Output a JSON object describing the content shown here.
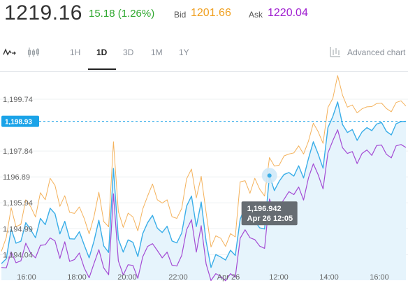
{
  "quote": {
    "price": "1219.16",
    "change": "15.18 (1.26%)",
    "bid_label": "Bid",
    "bid_value": "1201.66",
    "ask_label": "Ask",
    "ask_value": "1220.04"
  },
  "toolbar": {
    "line_icon": "line-chart-icon",
    "candle_icon": "candlestick-icon",
    "ranges": [
      "1H",
      "1D",
      "3D",
      "1M",
      "1Y"
    ],
    "active_range": "1D",
    "advanced_icon": "advanced-chart-icon",
    "advanced_label": "Advanced chart"
  },
  "colors": {
    "ask_series": "#f4b25c",
    "mid_series": "#3aaee8",
    "bid_series": "#a44bd4",
    "area_fill": "#e6f4fc",
    "current_line": "#1aa3e8"
  },
  "chart_data": {
    "type": "line",
    "y_ticks": [
      "1,199.74",
      "1,197.84",
      "1196.89",
      "1,195.94",
      "1,194.99",
      "1,194.04"
    ],
    "y_range": [
      1193.1,
      1200.74
    ],
    "x_ticks": [
      "16:00",
      "18:00",
      "20:00",
      "22:00",
      "Apr 26",
      "12:00",
      "14:00",
      "16:00"
    ],
    "current_value": "1,198.93",
    "current_numeric": 1198.93,
    "tooltip": {
      "value": "1,196.942",
      "time": "Apr 26 12:05"
    },
    "series": [
      {
        "color": "ask",
        "values": [
          1194.16,
          1194.67,
          1195.76,
          1195.06,
          1195.15,
          1196.05,
          1195.8,
          1195.42,
          1196.31,
          1196.05,
          1196.84,
          1196.58,
          1195.81,
          1196.2,
          1195.59,
          1195.55,
          1195.79,
          1195.36,
          1194.8,
          1195.43,
          1196.33,
          1195.25,
          1195.06,
          1198.18,
          1195.62,
          1195.04,
          1195.56,
          1195.42,
          1194.91,
          1195.71,
          1196.19,
          1196.63,
          1196.05,
          1195.93,
          1196.05,
          1195.43,
          1195.37,
          1195.73,
          1196.82,
          1197.18,
          1196.12,
          1196.91,
          1195.59,
          1194.32,
          1194.73,
          1194.64,
          1194.34,
          1194.81,
          1194.69,
          1196.71,
          1196.75,
          1196.29,
          1196.84,
          1196.44,
          1196.19,
          1197.6,
          1197.29,
          1197.32,
          1197.66,
          1197.73,
          1197.77,
          1198.03,
          1197.73,
          1198.2,
          1198.86,
          1198.55,
          1198.12,
          1199.44,
          1199.77,
          1200.61,
          1199.89,
          1199.45,
          1199.53,
          1199.24,
          1199.39,
          1199.46,
          1199.47,
          1199.58,
          1199.6,
          1199.4,
          1199.28,
          1199.62,
          1199.68,
          1199.49
        ]
      },
      {
        "color": "mid",
        "values": [
          1193.71,
          1193.89,
          1194.98,
          1194.46,
          1194.53,
          1195.21,
          1194.95,
          1194.66,
          1195.37,
          1195.14,
          1195.74,
          1195.54,
          1194.8,
          1195.26,
          1194.62,
          1194.61,
          1194.88,
          1194.39,
          1193.92,
          1194.53,
          1195.3,
          1194.36,
          1194.12,
          1197.2,
          1194.61,
          1194.13,
          1194.58,
          1194.49,
          1193.97,
          1194.81,
          1195.21,
          1195.48,
          1195.01,
          1194.85,
          1195.08,
          1194.54,
          1194.47,
          1194.83,
          1195.82,
          1196.19,
          1195.07,
          1195.97,
          1194.53,
          1193.57,
          1194.04,
          1193.95,
          1193.84,
          1194.2,
          1194.01,
          1195.34,
          1195.79,
          1195.4,
          1195.28,
          1195.02,
          1194.98,
          1196.94,
          1196.39,
          1196.73,
          1196.98,
          1197.05,
          1196.92,
          1197.3,
          1196.85,
          1197.56,
          1198.18,
          1197.73,
          1197.21,
          1198.7,
          1199.11,
          1199.64,
          1198.81,
          1198.52,
          1198.63,
          1198.23,
          1198.54,
          1198.7,
          1198.59,
          1198.83,
          1198.89,
          1198.56,
          1198.43,
          1198.84,
          1198.92,
          1198.93
        ]
      },
      {
        "color": "bid",
        "values": [
          1193.57,
          1193.55,
          1194.14,
          1193.74,
          1193.81,
          1194.46,
          1194.09,
          1193.92,
          1194.38,
          1194.4,
          1194.65,
          1194.54,
          1193.9,
          1194.51,
          1193.79,
          1193.86,
          1194.1,
          1193.55,
          1193.19,
          1193.71,
          1194.22,
          1193.55,
          1193.3,
          1196.27,
          1193.81,
          1193.29,
          1193.67,
          1193.64,
          1193.17,
          1193.96,
          1194.34,
          1194.44,
          1194.19,
          1193.92,
          1194.13,
          1193.65,
          1193.62,
          1194.01,
          1194.95,
          1195.32,
          1194.13,
          1195.1,
          1193.7,
          1193.09,
          1193.34,
          1193.24,
          1193.08,
          1193.34,
          1193.21,
          1194.64,
          1194.95,
          1194.66,
          1194.59,
          1194.35,
          1194.27,
          1196.08,
          1195.59,
          1195.8,
          1196.07,
          1196.35,
          1196.24,
          1196.52,
          1196.04,
          1196.85,
          1197.37,
          1196.97,
          1196.45,
          1197.77,
          1198.22,
          1198.62,
          1197.96,
          1197.75,
          1197.82,
          1197.38,
          1197.75,
          1197.88,
          1197.68,
          1198.04,
          1198.06,
          1197.72,
          1197.59,
          1198.03,
          1198.08,
          1197.97
        ]
      }
    ]
  }
}
